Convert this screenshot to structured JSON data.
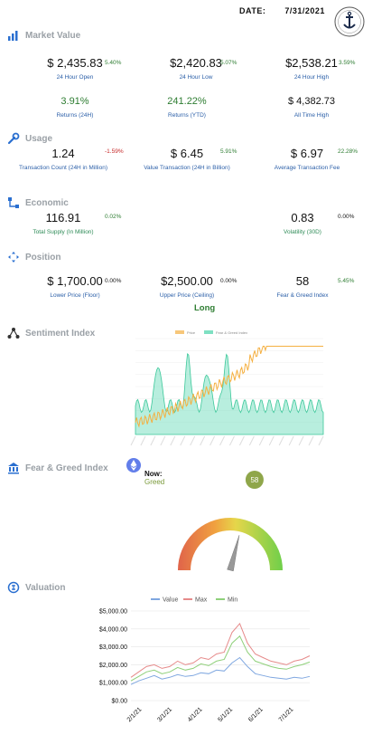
{
  "header": {
    "date_label": "DATE:",
    "date_value": "7/31/2021"
  },
  "colors": {
    "pct_positive": "#2e7d32",
    "pct_negative": "#c62828",
    "label_blue": "#2b5fa8",
    "section_gray": "#9aa0a6"
  },
  "market_value": {
    "title": "Market Value",
    "items": [
      {
        "value": "$  2,435.83",
        "change": "5.40%",
        "label": "24 Hour Open"
      },
      {
        "value": "$2,420.83",
        "change": "5.07%",
        "label": "24 Hour Low"
      },
      {
        "value": "$2,538.21",
        "change": "3.59%",
        "label": "24 Hour High"
      }
    ],
    "returns": [
      {
        "value": "3.91%",
        "label": "Returns (24H)"
      },
      {
        "value": "241.22%",
        "label": "Returns (YTD)"
      },
      {
        "value": "$  4,382.73",
        "label": "All Time High"
      }
    ]
  },
  "usage": {
    "title": "Usage",
    "items": [
      {
        "value": "1.24",
        "change": "-1.59%",
        "label": "Transaction Count (24H in Million)"
      },
      {
        "value": "$      6.45",
        "change": "5.91%",
        "label": "Value Transaction (24H in Billion)"
      },
      {
        "value": "$      6.97",
        "change": "22.28%",
        "label": "Average Transaction Fee"
      }
    ]
  },
  "economic": {
    "title": "Economic",
    "items": [
      {
        "value": "116.91",
        "change": "0.02%",
        "label": "Total Supply (In Million)"
      },
      {
        "value": "0.83",
        "change": "0.00%",
        "label": "Volatility (30D)"
      }
    ]
  },
  "position": {
    "title": "Position",
    "items": [
      {
        "value": "$  1,700.00",
        "change": "0.00%",
        "label": "Lower Price (Floor)"
      },
      {
        "value": "$2,500.00",
        "change": "0.00%",
        "label": "Upper Price (Ceiling)"
      },
      {
        "value": "58",
        "change": "5.45%",
        "label": "Fear & Greed Index"
      }
    ],
    "stance": "Long"
  },
  "sentiment": {
    "title": "Sentiment Index",
    "legend": [
      "Price",
      "Fear & Greed Index"
    ]
  },
  "fear_greed": {
    "title": "Fear & Greed Index",
    "now_label": "Now:",
    "now_value": "Greed",
    "gauge_value": 58,
    "gauge_display": "58"
  },
  "valuation": {
    "title": "Valuation",
    "chart_data": {
      "type": "line",
      "title": "",
      "xlabel": "",
      "ylabel": "",
      "legend_placement": "top",
      "ylim": [
        0,
        5000
      ],
      "y_ticks": [
        "$0.00",
        "$1,000.00",
        "$2,000.00",
        "$3,000.00",
        "$4,000.00",
        "$5,000.00"
      ],
      "x_ticks": [
        "2/1/21",
        "3/1/21",
        "4/1/21",
        "5/1/21",
        "6/1/21",
        "7/1/21"
      ],
      "series": [
        {
          "name": "Value",
          "color": "#7fa7e0",
          "values": [
            900,
            1100,
            1250,
            1400,
            1200,
            1300,
            1450,
            1350,
            1400,
            1550,
            1500,
            1700,
            1650,
            2100,
            2400,
            1900,
            1500,
            1400,
            1300,
            1250,
            1200,
            1300,
            1250,
            1350
          ]
        },
        {
          "name": "Max",
          "color": "#e68a8a",
          "values": [
            1300,
            1600,
            1900,
            2000,
            1800,
            1900,
            2200,
            2000,
            2100,
            2400,
            2300,
            2600,
            2700,
            3800,
            4300,
            3200,
            2600,
            2400,
            2200,
            2100,
            2000,
            2200,
            2300,
            2500
          ]
        },
        {
          "name": "Min",
          "color": "#8fd07a",
          "values": [
            1100,
            1350,
            1600,
            1700,
            1500,
            1600,
            1850,
            1700,
            1800,
            2050,
            1950,
            2200,
            2300,
            3200,
            3600,
            2700,
            2200,
            2050,
            1900,
            1800,
            1750,
            1900,
            2000,
            2150
          ]
        }
      ]
    }
  }
}
